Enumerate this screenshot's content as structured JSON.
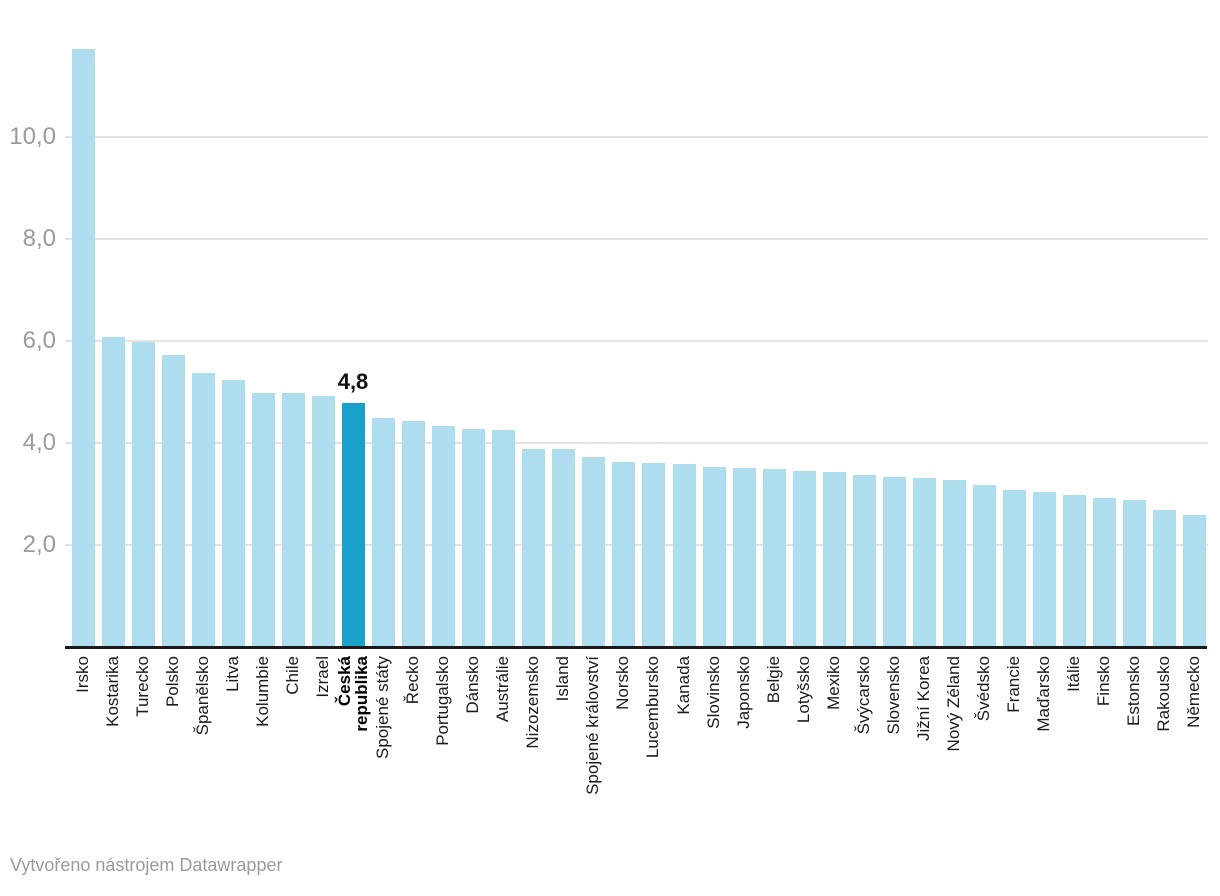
{
  "chart_data": {
    "type": "bar",
    "title": "",
    "xlabel": "",
    "ylabel": "",
    "grid": "horizontal",
    "ylim": [
      0,
      11.9
    ],
    "y_ticks": [
      {
        "value": 2,
        "label": "2,0"
      },
      {
        "value": 4,
        "label": "4,0"
      },
      {
        "value": 6,
        "label": "6,0"
      },
      {
        "value": 8,
        "label": "8,0"
      },
      {
        "value": 10,
        "label": "10,0"
      }
    ],
    "categories": [
      "Irsko",
      "Kostarika",
      "Turecko",
      "Polsko",
      "Španělsko",
      "Litva",
      "Kolumbie",
      "Chile",
      "Izrael",
      "Česká republika",
      "Spojené státy",
      "Řecko",
      "Portugalsko",
      "Dánsko",
      "Austrálie",
      "Nizozemsko",
      "Island",
      "Spojené království",
      "Norsko",
      "Lucembursko",
      "Kanada",
      "Slovinsko",
      "Japonsko",
      "Belgie",
      "Lotyšsko",
      "Mexiko",
      "Švýcarsko",
      "Slovensko",
      "Jižní Korea",
      "Nový Zéland",
      "Švédsko",
      "Francie",
      "Maďarsko",
      "Itálie",
      "Finsko",
      "Estonsko",
      "Rakousko",
      "Německo"
    ],
    "values": [
      11.75,
      6.1,
      6.0,
      5.75,
      5.4,
      5.25,
      5.0,
      5.0,
      4.95,
      4.8,
      4.5,
      4.45,
      4.35,
      4.3,
      4.28,
      3.9,
      3.9,
      3.75,
      3.65,
      3.62,
      3.6,
      3.55,
      3.52,
      3.5,
      3.48,
      3.45,
      3.4,
      3.35,
      3.33,
      3.3,
      3.2,
      3.1,
      3.05,
      3.0,
      2.95,
      2.9,
      2.7,
      2.6
    ],
    "highlight": {
      "index": 9,
      "category": "Česká republika",
      "label_display": "Česká\nrepublika",
      "value_label": "4,8"
    },
    "bar_color": "#aeddee",
    "highlight_color": "#18a1cb",
    "legend_position": "none"
  },
  "footer": {
    "attribution": "Vytvořeno nástrojem Datawrapper"
  }
}
